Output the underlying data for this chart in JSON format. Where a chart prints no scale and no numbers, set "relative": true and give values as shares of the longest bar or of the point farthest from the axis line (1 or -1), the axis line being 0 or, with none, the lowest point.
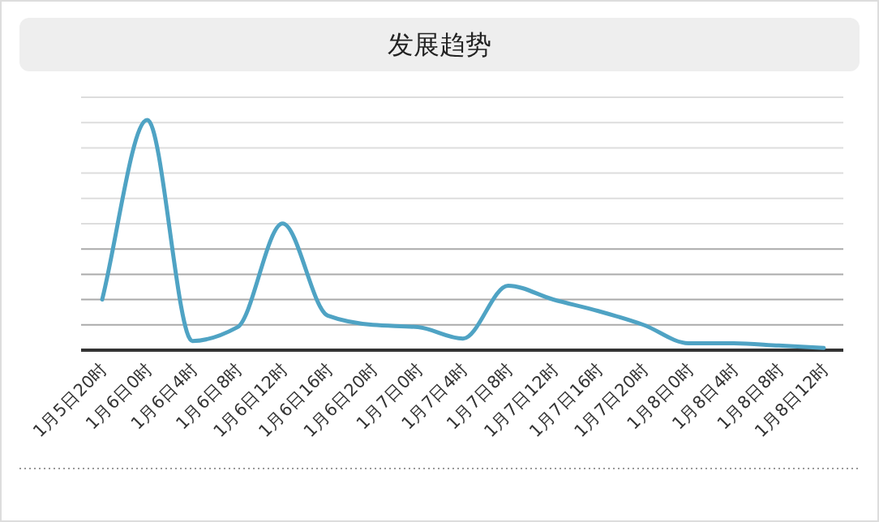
{
  "chart_data": {
    "type": "line",
    "title": "发展趋势",
    "relative": true,
    "grid": "y",
    "marker": "none",
    "line_style": "solid",
    "categories": [
      "1月5日20时",
      "1月6日0时",
      "1月6日4时",
      "1月6日8时",
      "1月6日12时",
      "1月6日16时",
      "1月6日20时",
      "1月7日0时",
      "1月7日4时",
      "1月7日8时",
      "1月7日12时",
      "1月7日16时",
      "1月7日20时",
      "1月8日0时",
      "1月8日4时",
      "1月8日8时",
      "1月8日12时"
    ],
    "series": [
      {
        "color": "#4fa3c4",
        "values": [
          0.22,
          1.0,
          0.04,
          0.1,
          0.55,
          0.15,
          0.11,
          0.1,
          0.05,
          0.28,
          0.22,
          0.17,
          0.11,
          0.03,
          0.03,
          0.02,
          0.01
        ]
      }
    ]
  }
}
